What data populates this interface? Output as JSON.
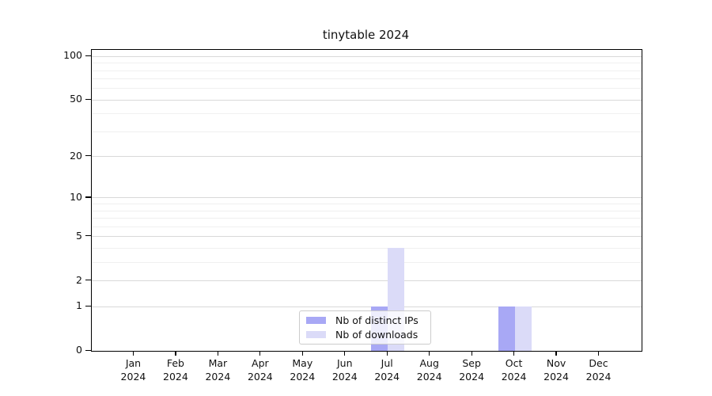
{
  "title": "tinytable 2024",
  "chart_data": {
    "type": "bar",
    "title": "tinytable 2024",
    "categories": [
      "Jan",
      "Feb",
      "Mar",
      "Apr",
      "May",
      "Jun",
      "Jul",
      "Aug",
      "Sep",
      "Oct",
      "Nov",
      "Dec"
    ],
    "year": "2024",
    "series": [
      {
        "name": "Nb of distinct IPs",
        "color": "#a8a8f5",
        "values": [
          0,
          0,
          0,
          0,
          0,
          0,
          1,
          0,
          0,
          1,
          0,
          0
        ]
      },
      {
        "name": "Nb of downloads",
        "color": "#dbdbf8",
        "values": [
          0,
          0,
          0,
          0,
          0,
          0,
          4,
          0,
          0,
          1,
          0,
          0
        ]
      }
    ],
    "yscale": "log1p",
    "yticks": [
      0,
      1,
      2,
      5,
      10,
      20,
      50,
      100
    ],
    "yticks_minor": [
      3,
      4,
      6,
      7,
      8,
      9,
      30,
      40,
      60,
      70,
      80,
      90
    ],
    "ylim": [
      0,
      111
    ],
    "grid": "horizontal",
    "legend_position": "lower center",
    "colors": {
      "major_grid": "#d9d9d9",
      "minor_grid": "#f0f0f0",
      "spine": "#000000",
      "text": "#111111"
    }
  }
}
